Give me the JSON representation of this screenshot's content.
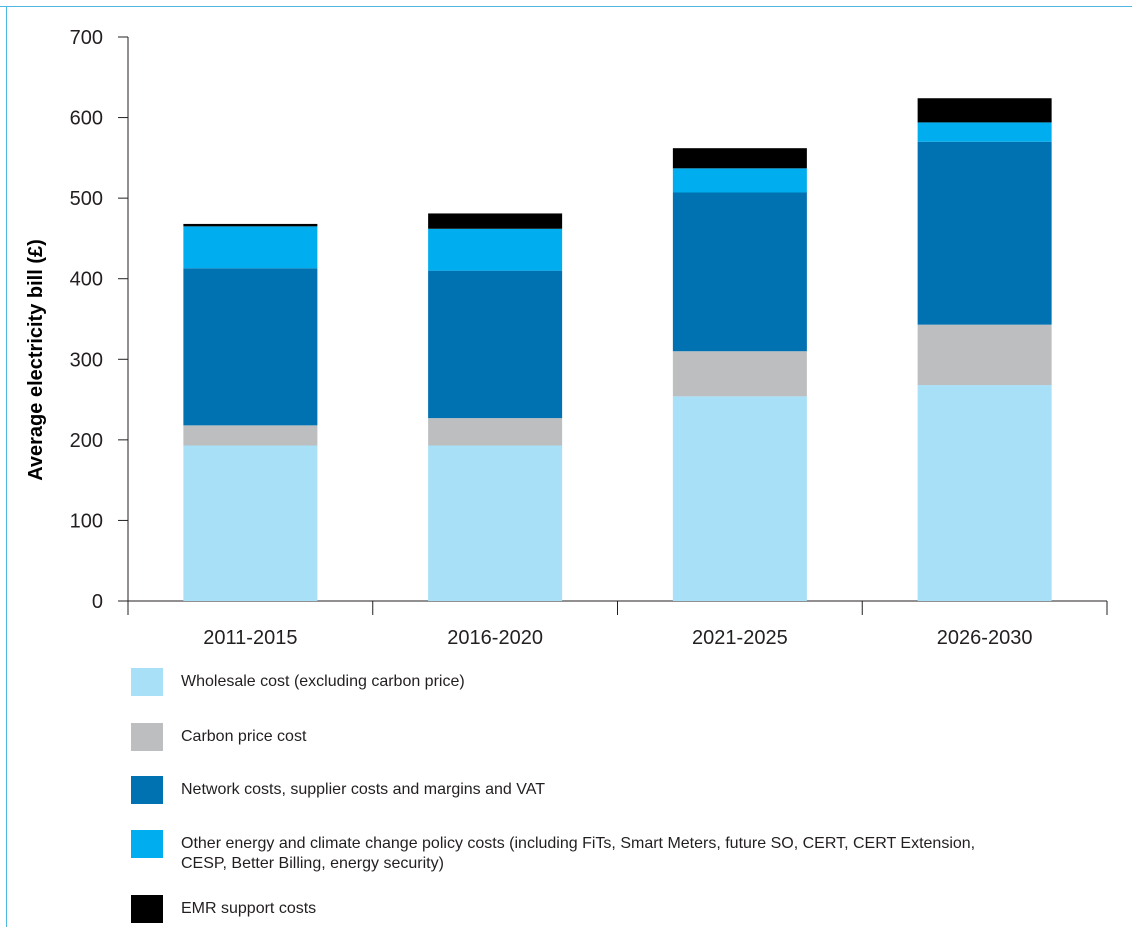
{
  "chart_data": {
    "type": "bar",
    "stacked": true,
    "categories": [
      "2011-2015",
      "2016-2020",
      "2021-2025",
      "2026-2030"
    ],
    "ylabel": "Average electricity bill (£)",
    "xlabel": "",
    "title": "",
    "ylim": [
      0,
      700
    ],
    "yticks": [
      0,
      100,
      200,
      300,
      400,
      500,
      600,
      700
    ],
    "grid": false,
    "legend_position": "bottom",
    "series": [
      {
        "name": "Wholesale cost (excluding carbon price)",
        "color": "#a8e0f8",
        "values": [
          193,
          193,
          254,
          268
        ]
      },
      {
        "name": "Carbon price cost",
        "color": "#bcbec0",
        "values": [
          25,
          34,
          56,
          75
        ]
      },
      {
        "name": "Network costs, supplier costs and margins and VAT",
        "color": "#0071b1",
        "values": [
          195,
          183,
          197,
          227
        ]
      },
      {
        "name": "Other energy and climate change policy costs (including FiTs, Smart Meters, future SO, CERT, CERT Extension, CESP, Better Billing, energy security)",
        "color": "#00aeef",
        "values": [
          52,
          52,
          30,
          24
        ]
      },
      {
        "name": "EMR support costs",
        "color": "#000000",
        "values": [
          3,
          19,
          25,
          30
        ]
      }
    ]
  },
  "legend": {
    "items": [
      {
        "label": "Wholesale cost (excluding carbon price)"
      },
      {
        "label": "Carbon price cost"
      },
      {
        "label": "Network costs, supplier costs and margins and VAT"
      },
      {
        "label": "Other energy and climate change policy costs (including FiTs, Smart Meters, future SO, CERT, CERT Extension, CESP, Better Billing, energy security)"
      },
      {
        "label": "EMR support costs"
      }
    ]
  }
}
